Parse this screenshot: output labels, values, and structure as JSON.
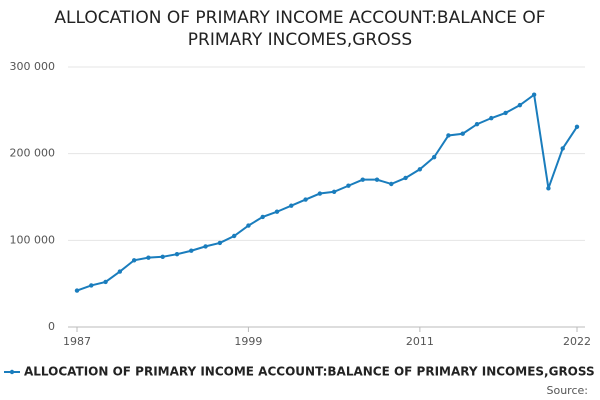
{
  "chart_data": {
    "type": "line",
    "title": "ALLOCATION OF PRIMARY INCOME ACCOUNT:BALANCE OF PRIMARY INCOMES,GROSS",
    "x": [
      1987,
      1988,
      1989,
      1990,
      1991,
      1992,
      1993,
      1994,
      1995,
      1996,
      1997,
      1998,
      1999,
      2000,
      2001,
      2002,
      2003,
      2004,
      2005,
      2006,
      2007,
      2008,
      2009,
      2010,
      2011,
      2012,
      2013,
      2014,
      2015,
      2016,
      2017,
      2018,
      2019,
      2020,
      2021,
      2022
    ],
    "series": [
      {
        "name": "ALLOCATION OF PRIMARY INCOME ACCOUNT:BALANCE OF PRIMARY INCOMES,GROSS",
        "color": "#1a7dbd",
        "values": [
          42000,
          48000,
          52000,
          64000,
          77000,
          80000,
          81000,
          84000,
          88000,
          93000,
          97000,
          105000,
          117000,
          127000,
          133000,
          140000,
          147000,
          154000,
          156000,
          163000,
          170000,
          170000,
          165000,
          172000,
          182000,
          196000,
          221000,
          223000,
          234000,
          241000,
          247000,
          256000,
          268000,
          160000,
          206000,
          231000
        ]
      }
    ],
    "xlim": [
      1987,
      2022
    ],
    "xticks": [
      1987,
      1999,
      2011,
      2022
    ],
    "ylim": [
      0,
      300000
    ],
    "yticks": [
      0,
      {
        "value": 100000,
        "label": "100 000"
      },
      {
        "value": 200000,
        "label": "200 000"
      },
      {
        "value": 300000,
        "label": "300 000"
      }
    ],
    "grid": true,
    "legend": "bottom",
    "source": "Source:"
  }
}
